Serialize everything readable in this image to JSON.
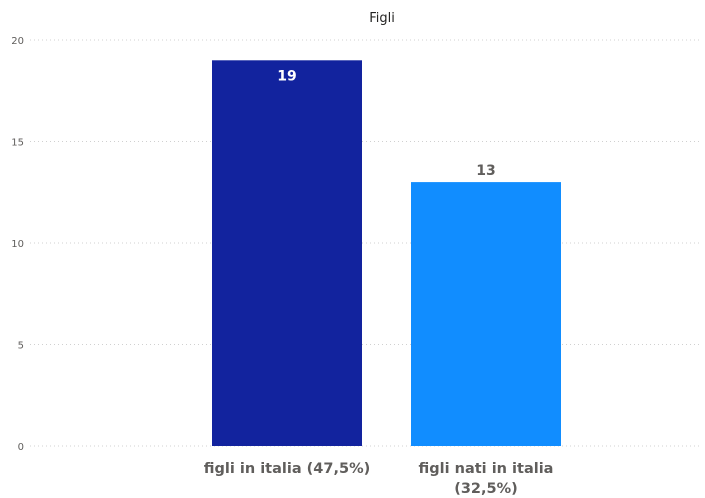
{
  "chart_data": {
    "type": "bar",
    "title": "Figli",
    "xlabel": "",
    "ylabel": "",
    "ylim": [
      0,
      20
    ],
    "yticks": [
      0,
      5,
      10,
      15,
      20
    ],
    "grid": true,
    "legend": "none",
    "categories": [
      [
        "figli in italia (47,5%)"
      ],
      [
        "figli nati in italia",
        "(32,5%)"
      ]
    ],
    "values": [
      19,
      13
    ],
    "data_labels": [
      "19",
      "13"
    ],
    "colors": [
      "#12239e",
      "#118dff"
    ],
    "data_label_colors": [
      "#ffffff",
      "#605e5c"
    ]
  }
}
